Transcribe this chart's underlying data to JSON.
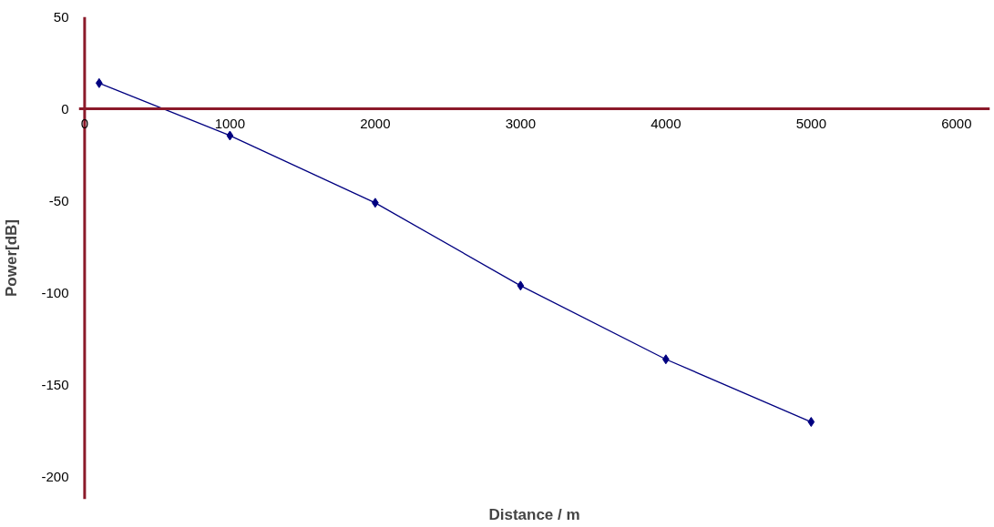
{
  "chart_data": {
    "type": "line",
    "xlabel": "Distance / m",
    "ylabel": "Power[dB]",
    "x": [
      100,
      1000,
      2000,
      3000,
      4000,
      5000
    ],
    "series": [
      {
        "color": "#000080",
        "values": [
          14,
          -14.5,
          -51,
          -96,
          -136,
          -170
        ]
      }
    ],
    "xlim": [
      -40,
      6230
    ],
    "xticks": [
      0,
      1000,
      2000,
      3000,
      4000,
      5000,
      6000
    ],
    "ylim": [
      -212,
      50
    ],
    "yticks": [
      -200,
      -150,
      -100,
      -50,
      0,
      50
    ],
    "grid": false,
    "marker": "diamond",
    "line_style": "solid"
  }
}
